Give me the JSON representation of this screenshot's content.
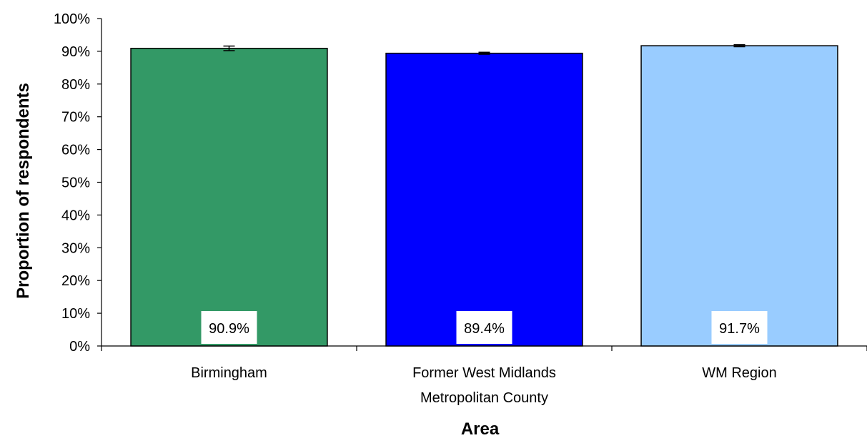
{
  "chart_data": {
    "type": "bar",
    "title": "",
    "xlabel": "Area",
    "ylabel": "Proportion of respondents",
    "categories": [
      [
        "Birmingham"
      ],
      [
        "Former West Midlands",
        "Metropolitan County"
      ],
      [
        "WM Region"
      ]
    ],
    "values": [
      90.9,
      89.4,
      91.7
    ],
    "data_labels": [
      "90.9%",
      "89.4%",
      "91.7%"
    ],
    "error_bars": [
      {
        "low": 90.2,
        "high": 91.6
      },
      {
        "low": 89.1,
        "high": 89.7
      },
      {
        "low": 91.4,
        "high": 92.0
      }
    ],
    "bar_colors": [
      "#339966",
      "#0000FF",
      "#99CCFF"
    ],
    "ylim": [
      0,
      100
    ],
    "y_ticks": [
      "0%",
      "10%",
      "20%",
      "30%",
      "40%",
      "50%",
      "60%",
      "70%",
      "80%",
      "90%",
      "100%"
    ],
    "grid": false,
    "legend": "none"
  }
}
